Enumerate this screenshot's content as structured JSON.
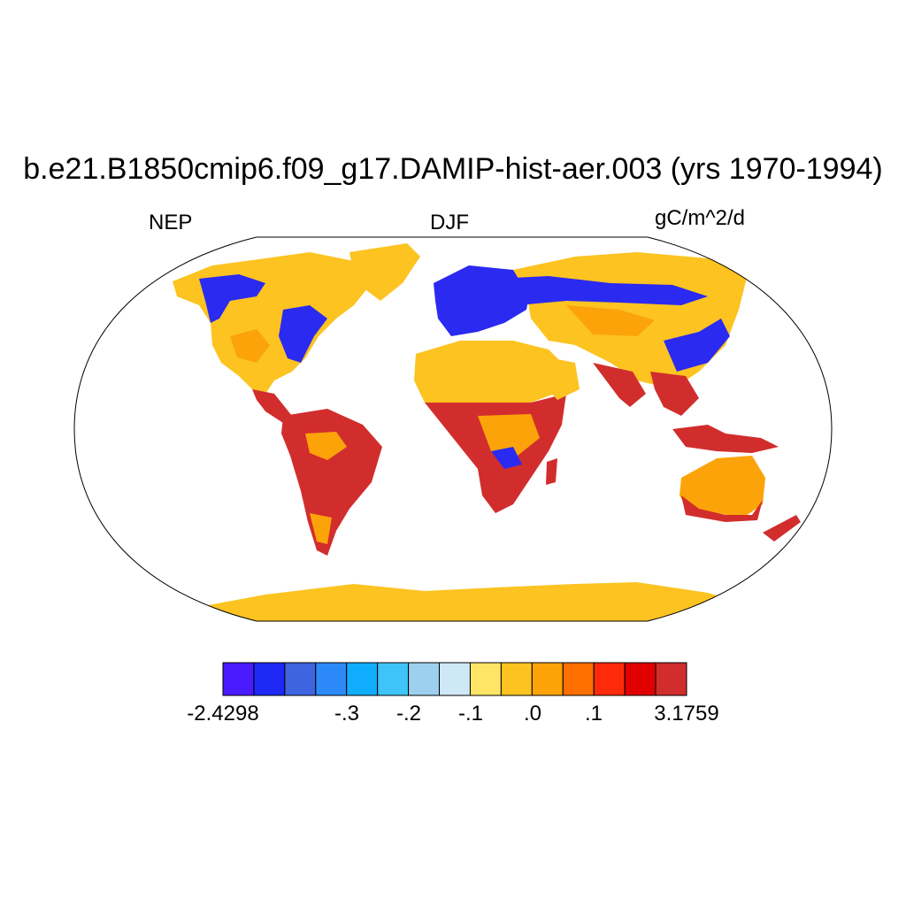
{
  "title": "b.e21.B1850cmip6.f09_g17.DAMIP-hist-aer.003 (yrs 1970-1994)",
  "left_label": "NEP",
  "center_label": "DJF",
  "right_label": "gC/m^2/d",
  "colorbar": {
    "colors": [
      "#4a1aff",
      "#1e28f5",
      "#3f64e0",
      "#2b8af7",
      "#0fadfb",
      "#3ec4f6",
      "#9dd0ee",
      "#cfe8f7",
      "#ffe566",
      "#fcc321",
      "#fca30a",
      "#ff6f00",
      "#ff2a0a",
      "#e00000",
      "#d22d2d"
    ],
    "labels": [
      "-2.4298",
      "-.3",
      "-.2",
      "-.1",
      ".0",
      ".1",
      "3.1759"
    ]
  },
  "palette": {
    "land_neutral": "#fcc321",
    "land_orange": "#fca30a",
    "land_negative": "#2a2af0",
    "land_positive": "#d22d2d",
    "ocean": "#ffffff"
  }
}
